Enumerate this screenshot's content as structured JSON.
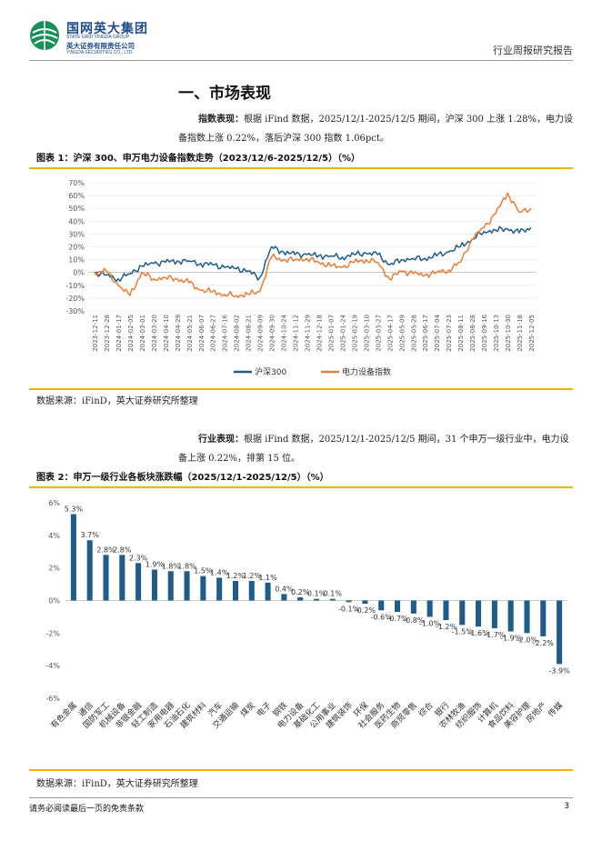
{
  "header": {
    "brand_cn": "国网英大集团",
    "brand_en1": "STATE GRID YINGDA GROUP",
    "brand_cn2": "英大证券有限责任公司",
    "brand_en2": "YINGDA SECURITIES CO., LTD.",
    "report_type": "行业周报研究报告"
  },
  "section": {
    "title": "一、市场表现",
    "para1_label": "指数表现：",
    "para1_text": "根据 iFind 数据，2025/12/1-2025/12/5 期间，沪深 300 上涨 1.28%，电力设备指数上涨 0.22%，落后沪深 300 指数 1.06pct。",
    "para2_label": "行业表现：",
    "para2_text": "根据 iFind 数据，2025/12/1-2025/12/5 期间，31 个申万一级行业中，电力设备上涨 0.22%，排第 15 位。"
  },
  "figure1": {
    "title": "图表 1：沪深 300、申万电力设备指数走势（2023/12/6-2025/12/5）（%）",
    "source": "数据来源：iFinD，英大证券研究所整理"
  },
  "figure2": {
    "title": "图表 2：申万一级行业各板块涨跌幅（2025/12/1-2025/12/5）（%）",
    "source": "数据来源：iFinD，英大证券研究所整理"
  },
  "footer": {
    "disclaimer": "请务必阅读最后一页的免责条款",
    "page": "3"
  },
  "colors": {
    "series_blue": "#1f5c8a",
    "series_orange": "#ed7d31",
    "bar": "#1f5c8a",
    "gold": "#f0b400"
  },
  "chart_data": [
    {
      "type": "line",
      "title": "沪深 300、申万电力设备指数走势（2023/12/6-2025/12/5）（%）",
      "ylim": [
        -30,
        70
      ],
      "yticks": [
        -30,
        -20,
        -10,
        0,
        10,
        20,
        30,
        40,
        50,
        60,
        70
      ],
      "ytick_labels": [
        "-30%",
        "-20%",
        "-10%",
        "0%",
        "10%",
        "20%",
        "30%",
        "40%",
        "50%",
        "60%",
        "70%"
      ],
      "categories": [
        "2023-12-11",
        "2023-12-28",
        "2024-01-17",
        "2024-02-05",
        "2024-03-01",
        "2024-03-20",
        "2024-04-10",
        "2024-04-29",
        "2024-05-21",
        "2024-06-07",
        "2024-06-27",
        "2024-07-16",
        "2024-08-02",
        "2024-08-21",
        "2024-09-09",
        "2024-09-30",
        "2024-10-24",
        "2024-11-12",
        "2024-11-29",
        "2024-12-18",
        "2025-01-07",
        "2025-01-24",
        "2025-02-19",
        "2025-03-10",
        "2025-03-27",
        "2025-04-17",
        "2025-05-09",
        "2025-05-28",
        "2025-06-17",
        "2025-07-04",
        "2025-07-23",
        "2025-08-11",
        "2025-08-28",
        "2025-09-16",
        "2025-10-13",
        "2025-10-30",
        "2025-11-18",
        "2025-12-05"
      ],
      "series": [
        {
          "name": "沪深300",
          "values": [
            0,
            -2,
            -5,
            -1,
            5,
            7,
            8,
            9,
            9,
            7,
            6,
            4,
            3,
            1,
            -4,
            20,
            16,
            14,
            14,
            13,
            13,
            12,
            14,
            15,
            14,
            6,
            10,
            11,
            11,
            13,
            16,
            20,
            26,
            32,
            33,
            34,
            31,
            35
          ]
        },
        {
          "name": "电力设备指数",
          "values": [
            0,
            1,
            -10,
            -18,
            0,
            -5,
            -4,
            -5,
            -8,
            -14,
            -15,
            -17,
            -18,
            -17,
            -15,
            12,
            10,
            10,
            11,
            8,
            5,
            4,
            8,
            10,
            8,
            -5,
            1,
            -1,
            -2,
            0,
            2,
            8,
            26,
            35,
            46,
            62,
            47,
            50
          ]
        }
      ]
    },
    {
      "type": "bar",
      "title": "申万一级行业各板块涨跌幅（2025/12/1-2025/12/5）（%）",
      "ylim": [
        -6,
        6
      ],
      "yticks": [
        -6,
        -4,
        -2,
        0,
        2,
        4,
        6
      ],
      "ytick_labels": [
        "-6%",
        "-4%",
        "-2%",
        "0%",
        "2%",
        "4%",
        "6%"
      ],
      "categories": [
        "有色金属",
        "通信",
        "国防军工",
        "机械设备",
        "非银金融",
        "轻工制造",
        "家用电器",
        "石油石化",
        "建筑材料",
        "汽车",
        "交通运输",
        "煤炭",
        "电子",
        "钢铁",
        "电力设备",
        "基础化工",
        "公用事业",
        "建筑装饰",
        "环保",
        "社会服务",
        "医药生物",
        "商贸零售",
        "综合",
        "银行",
        "农林牧渔",
        "纺织服饰",
        "计算机",
        "食品饮料",
        "美容护理",
        "房地产",
        "传媒"
      ],
      "values": [
        5.3,
        3.7,
        2.8,
        2.8,
        2.3,
        1.9,
        1.8,
        1.8,
        1.5,
        1.4,
        1.2,
        1.2,
        1.1,
        0.4,
        0.2,
        0.1,
        0.1,
        -0.1,
        -0.2,
        -0.6,
        -0.7,
        -0.8,
        -1.0,
        -1.2,
        -1.5,
        -1.6,
        -1.7,
        -1.9,
        -2.0,
        -2.2,
        -3.9
      ],
      "value_labels": [
        "5.3%",
        "3.7%",
        "2.8%",
        "2.8%",
        "2.3%",
        "1.9%",
        "1.8%",
        "1.8%",
        "1.5%",
        "1.4%",
        "1.2%",
        "1.2%",
        "1.1%",
        "0.4%",
        "0.2%",
        "0.1%",
        "0.1%",
        "-0.1%",
        "-0.2%",
        "-0.6%",
        "-0.7%",
        "-0.8%",
        "-1.0%",
        "-1.2%",
        "-1.5%",
        "-1.6%",
        "-1.7%",
        "-1.9%",
        "-2.0%",
        "-2.2%",
        "-3.9%"
      ]
    }
  ]
}
